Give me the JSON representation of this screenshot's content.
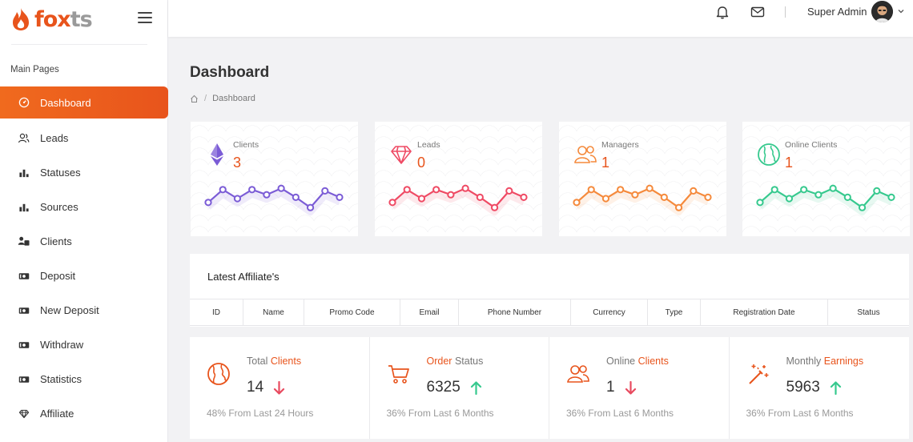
{
  "brand": {
    "logo_main": "fox",
    "logo_tail": "ts"
  },
  "sidebar": {
    "section_label": "Main Pages",
    "items": [
      {
        "label": "Dashboard",
        "icon": "dashboard-icon",
        "active": true
      },
      {
        "label": "Leads",
        "icon": "users-icon"
      },
      {
        "label": "Statuses",
        "icon": "bar-chart-icon"
      },
      {
        "label": "Sources",
        "icon": "bar-chart-icon"
      },
      {
        "label": "Clients",
        "icon": "user-card-icon"
      },
      {
        "label": "Deposit",
        "icon": "money-icon"
      },
      {
        "label": "New Deposit",
        "icon": "money-icon"
      },
      {
        "label": "Withdraw",
        "icon": "money-icon"
      },
      {
        "label": "Statistics",
        "icon": "money-icon"
      },
      {
        "label": "Affiliate",
        "icon": "diamond-icon"
      }
    ]
  },
  "header": {
    "user_name": "Super Admin",
    "icons": [
      "bell-icon",
      "mail-icon",
      "chevron-down-icon"
    ]
  },
  "page": {
    "title": "Dashboard",
    "breadcrumb": [
      "Dashboard"
    ]
  },
  "stat_cards": [
    {
      "label": "Clients",
      "value": "3",
      "icon": "ethereum-icon",
      "color": "#7b5cd6",
      "spark": [
        0.65,
        0.15,
        0.5,
        0.15,
        0.35,
        0.1,
        0.45,
        0.85,
        0.2,
        0.45
      ]
    },
    {
      "label": "Leads",
      "value": "0",
      "icon": "diamond-icon",
      "color": "#ef4a64",
      "spark": [
        0.65,
        0.15,
        0.5,
        0.15,
        0.35,
        0.1,
        0.45,
        0.85,
        0.2,
        0.45
      ]
    },
    {
      "label": "Managers",
      "value": "1",
      "icon": "users-icon",
      "color": "#f58a3c",
      "spark": [
        0.65,
        0.15,
        0.5,
        0.15,
        0.35,
        0.1,
        0.45,
        0.85,
        0.2,
        0.45
      ]
    },
    {
      "label": "Online Clients",
      "value": "1",
      "icon": "globe-icon",
      "color": "#36c98e",
      "spark": [
        0.65,
        0.15,
        0.5,
        0.15,
        0.35,
        0.1,
        0.45,
        0.85,
        0.2,
        0.45
      ]
    }
  ],
  "affiliates_table": {
    "title": "Latest Affiliate's",
    "columns": [
      "ID",
      "Name",
      "Promo Code",
      "Email",
      "Phone Number",
      "Currency",
      "Type",
      "Registration Date",
      "Status"
    ]
  },
  "kpis": [
    {
      "title_plain": "Total",
      "title_accent": "Clients",
      "value": "14",
      "trend": "down",
      "footer": "48% From Last 24 Hours",
      "icon": "globe-icon"
    },
    {
      "title_plain": "Status",
      "title_accent": "Order",
      "accent_first": true,
      "value": "6325",
      "trend": "up",
      "footer": "36% From Last 6 Months",
      "icon": "cart-icon"
    },
    {
      "title_plain": "Online",
      "title_accent": "Clients",
      "value": "1",
      "trend": "down",
      "footer": "36% From Last 6 Months",
      "icon": "users-icon"
    },
    {
      "title_plain": "Monthly",
      "title_accent": "Earnings",
      "value": "5963",
      "trend": "up",
      "footer": "36% From Last 6 Months",
      "icon": "magic-wand-icon"
    }
  ],
  "colors": {
    "accent": "#e8541c",
    "up": "#36c98e",
    "down": "#e84a5f"
  }
}
